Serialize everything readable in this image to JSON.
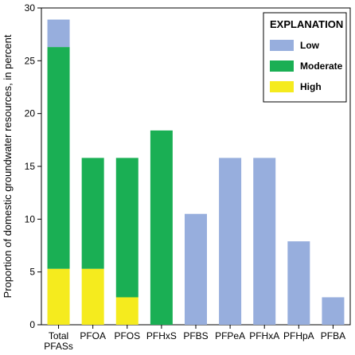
{
  "chart_data": {
    "type": "bar",
    "stacked": true,
    "ylabel": "Proportion of domestic groundwater resources, in percent",
    "ylim": [
      0,
      30
    ],
    "yticks": [
      0,
      5,
      10,
      15,
      20,
      25,
      30
    ],
    "categories": [
      [
        "Total",
        "PFASs"
      ],
      [
        "PFOA"
      ],
      [
        "PFOS"
      ],
      [
        "PFHxS"
      ],
      [
        "PFBS"
      ],
      [
        "PFPeA"
      ],
      [
        "PFHxA"
      ],
      [
        "PFHpA"
      ],
      [
        "PFBA"
      ]
    ],
    "series": [
      {
        "name": "High",
        "color": "#f5eb1e",
        "values": [
          5.3,
          5.3,
          2.6,
          0,
          0,
          0,
          0,
          0,
          0
        ]
      },
      {
        "name": "Moderate",
        "color": "#1aaf54",
        "values": [
          21.0,
          10.5,
          13.2,
          18.4,
          0,
          0,
          0,
          0,
          0
        ]
      },
      {
        "name": "Low",
        "color": "#97aedd",
        "values": [
          2.6,
          0,
          0,
          0,
          10.5,
          15.8,
          15.8,
          7.9,
          2.6
        ]
      }
    ],
    "legend": {
      "title": "EXPLANATION",
      "position": "top-right",
      "items": [
        "Low",
        "Moderate",
        "High"
      ]
    },
    "grid": false
  }
}
